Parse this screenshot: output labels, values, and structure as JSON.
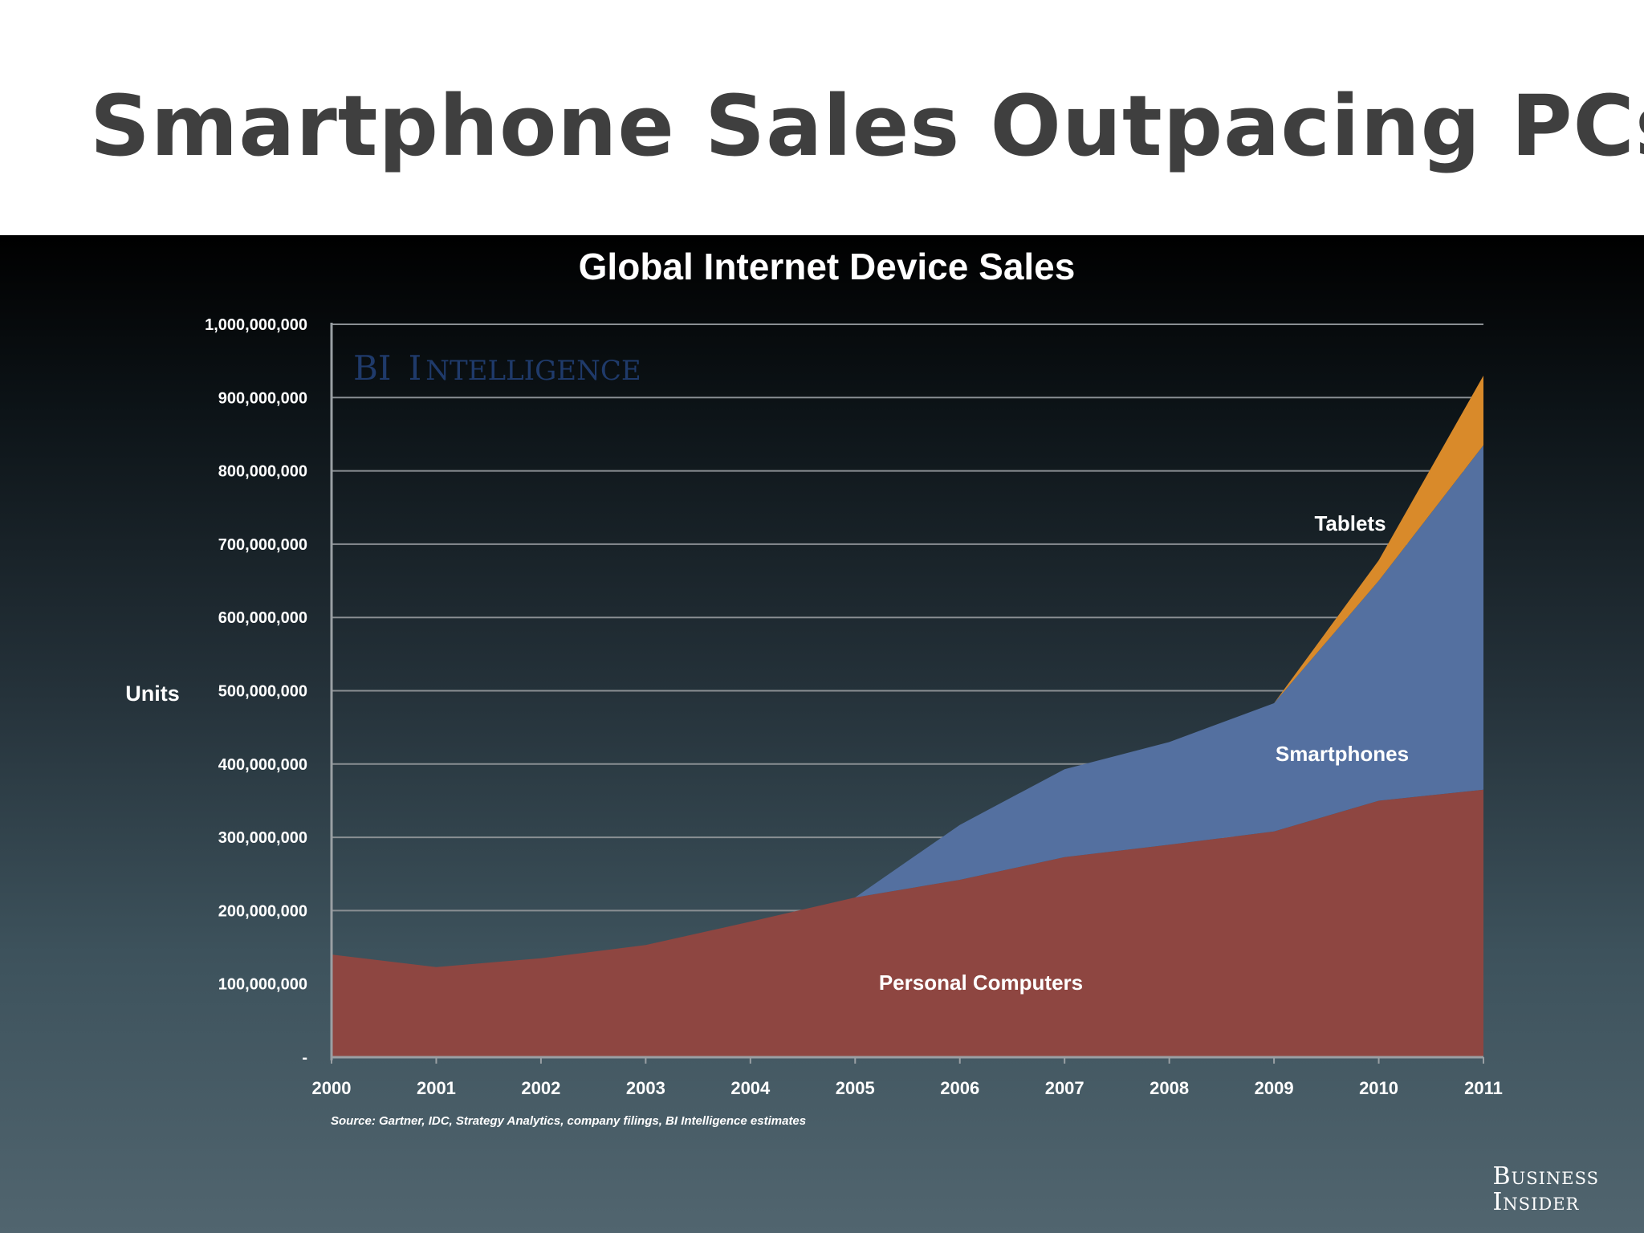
{
  "slide": {
    "title": "Smartphone Sales Outpacing PCs"
  },
  "watermark": {
    "first": "BI",
    "second_initial": "I",
    "second_rest": "NTELLIGENCE"
  },
  "brand": {
    "line1": "Business",
    "line2": "Insider"
  },
  "colors": {
    "personal_computers": "#8e4641",
    "smartphones": "#5470a0",
    "tablets": "#d98a2a"
  },
  "chart_data": {
    "type": "area",
    "stacked": true,
    "title": "Global Internet Device Sales",
    "ylabel": "Units",
    "xlabel": "",
    "x": [
      "2000",
      "2001",
      "2002",
      "2003",
      "2004",
      "2005",
      "2006",
      "2007",
      "2008",
      "2009",
      "2010",
      "2011"
    ],
    "ylim": [
      0,
      1000000000
    ],
    "yticks": [
      0,
      100000000,
      200000000,
      300000000,
      400000000,
      500000000,
      600000000,
      700000000,
      800000000,
      900000000,
      1000000000
    ],
    "ytick_labels": [
      "-",
      "100,000,000",
      "200,000,000",
      "300,000,000",
      "400,000,000",
      "500,000,000",
      "600,000,000",
      "700,000,000",
      "800,000,000",
      "900,000,000",
      "1,000,000,000"
    ],
    "grid": true,
    "series": [
      {
        "name": "Personal Computers",
        "values": [
          140000000,
          123000000,
          135000000,
          153000000,
          185000000,
          218000000,
          242000000,
          273000000,
          290000000,
          308000000,
          350000000,
          365000000
        ]
      },
      {
        "name": "Smartphones",
        "values": [
          0,
          0,
          0,
          0,
          0,
          0,
          75000000,
          120000000,
          140000000,
          175000000,
          300000000,
          470000000
        ]
      },
      {
        "name": "Tablets",
        "values": [
          0,
          0,
          0,
          0,
          0,
          0,
          0,
          0,
          0,
          0,
          28000000,
          95000000
        ]
      }
    ],
    "source": "Source: Gartner, IDC, Strategy Analytics, company filings, BI Intelligence estimates"
  }
}
